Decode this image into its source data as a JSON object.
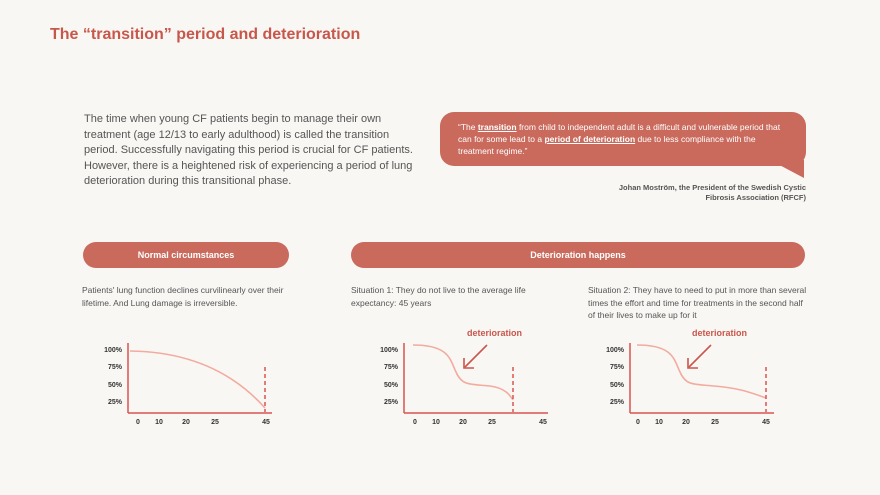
{
  "title": "The “transition” period and deterioration",
  "intro": "The time when young CF patients begin to manage their own treatment (age 12/13 to early adulthood) is called the transition period. Successfully navigating this period is crucial for CF patients. However, there is a heightened risk of experiencing a period of lung deterioration during this transitional phase.",
  "quote": {
    "open": "“The ",
    "em1": "transition",
    "mid": " from child to independent adult is a difficult and vulnerable period that can for some lead to a ",
    "em2": "period of deterioration",
    "close": " due to less compliance with the treatment regime.”",
    "attribution": "Johan Moström, the President of the Swedish Cystic Fibrosis Association (RFCF)"
  },
  "pills": {
    "normal": "Normal circumstances",
    "deterioration": "Deterioration happens"
  },
  "descriptions": {
    "normal": "Patients' lung function declines curvilinearly over their lifetime. And Lung damage is irreversible.",
    "situation1": "Situation 1: They do not live to the average life expectancy: 45 years",
    "situation2": "Situation 2: They have to need to put in more than several times the effort and time for treatments in the second half of their lives to make up for it"
  },
  "annotation": "deterioration",
  "colors": {
    "accent": "#c96a5d",
    "line": "#f2ab9e",
    "axis": "#d9534f"
  },
  "chart_data": [
    {
      "type": "line",
      "name": "normal",
      "y_ticks": [
        "100%",
        "75%",
        "50%",
        "25%"
      ],
      "x_ticks": [
        "0",
        "10",
        "20",
        "25",
        "45"
      ],
      "marker_at": "45"
    },
    {
      "type": "line",
      "name": "situation1",
      "y_ticks": [
        "100%",
        "75%",
        "50%",
        "25%"
      ],
      "x_ticks": [
        "0",
        "10",
        "20",
        "25",
        "45"
      ],
      "annotation": "deterioration"
    },
    {
      "type": "line",
      "name": "situation2",
      "y_ticks": [
        "100%",
        "75%",
        "50%",
        "25%"
      ],
      "x_ticks": [
        "0",
        "10",
        "20",
        "25",
        "45"
      ],
      "marker_at": "45",
      "annotation": "deterioration"
    }
  ]
}
